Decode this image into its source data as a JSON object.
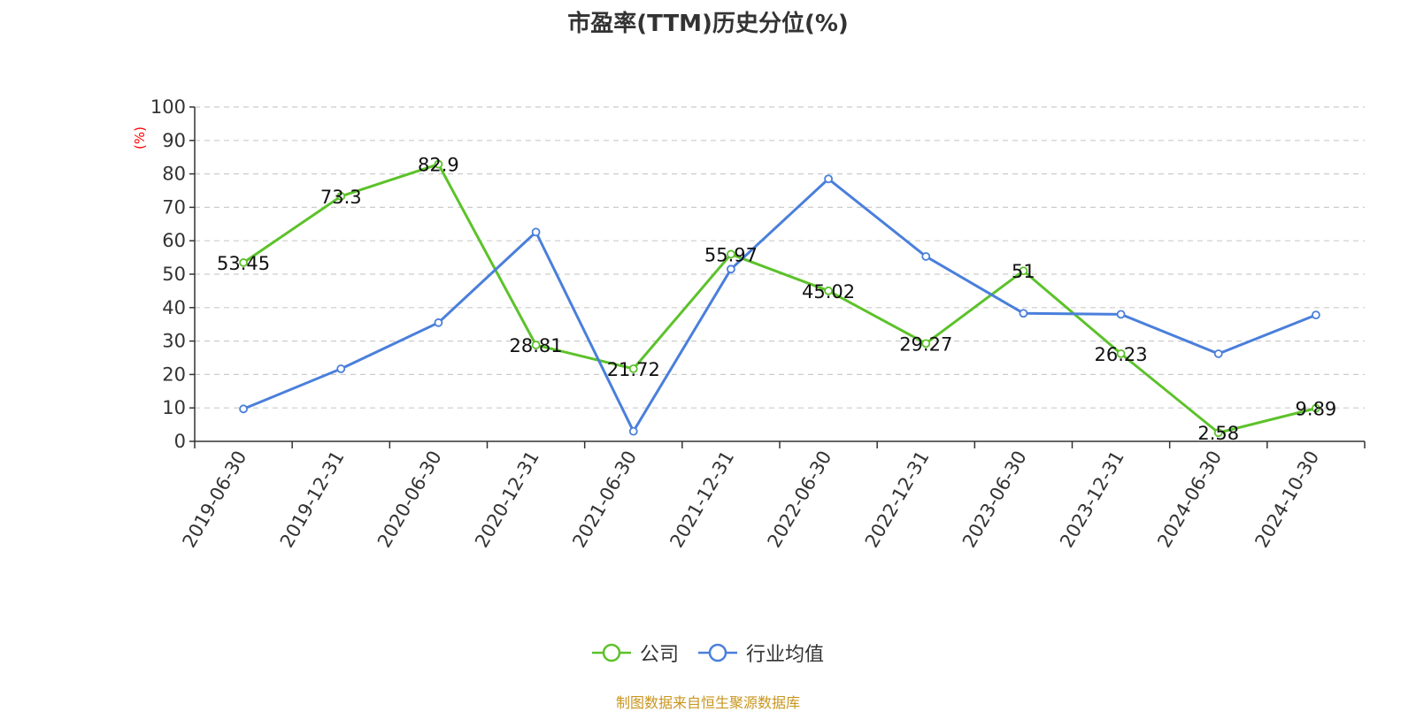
{
  "chart_data": {
    "type": "line",
    "title": "市盈率(TTM)历史分位(%)",
    "ylabel": "(%)",
    "xlabel": "",
    "ylim": [
      0,
      100
    ],
    "yticks": [
      0,
      10,
      20,
      30,
      40,
      50,
      60,
      70,
      80,
      90,
      100
    ],
    "categories": [
      "2019-06-30",
      "2019-12-31",
      "2020-06-30",
      "2020-12-31",
      "2021-06-30",
      "2021-12-31",
      "2022-06-30",
      "2022-12-31",
      "2023-06-30",
      "2023-12-31",
      "2024-06-30",
      "2024-10-30"
    ],
    "grid": true,
    "legend_position": "bottom",
    "series": [
      {
        "name": "公司",
        "color": "#5cc22a",
        "values": [
          53.45,
          73.3,
          82.9,
          28.81,
          21.72,
          55.97,
          45.02,
          29.27,
          51,
          26.23,
          2.58,
          9.89
        ],
        "data_labels": [
          "53.45",
          "73.3",
          "82.9",
          "28.81",
          "21.72",
          "55.97",
          "45.02",
          "29.27",
          "51",
          "26.23",
          "2.58",
          "9.89"
        ]
      },
      {
        "name": "行业均值",
        "color": "#4a7fdb",
        "values": [
          9.7,
          21.7,
          35.5,
          62.6,
          3.0,
          51.5,
          78.5,
          55.3,
          38.3,
          38.0,
          26.2,
          37.8
        ]
      }
    ]
  },
  "source_note": "制图数据来自恒生聚源数据库",
  "colors": {
    "title": "#333333",
    "axis": "#333333",
    "grid": "#cccccc",
    "ylabel": "#ff0000",
    "source_note": "#c8961e"
  }
}
